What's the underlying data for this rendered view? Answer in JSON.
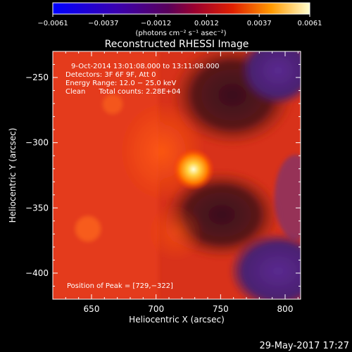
{
  "chart_data": {
    "type": "heatmap",
    "title": "Reconstructed RHESSI Image",
    "xlabel": "Heliocentric X (arcsec)",
    "ylabel": "Heliocentric Y (arcsec)",
    "xlim": [
      620,
      812
    ],
    "ylim": [
      -420,
      -230
    ],
    "x_ticks": [
      650,
      700,
      750,
      800
    ],
    "y_ticks": [
      -250,
      -300,
      -350,
      -400
    ],
    "colorbar": {
      "range": [
        -0.0061,
        0.0061
      ],
      "ticks": [
        -0.0061,
        -0.0037,
        -0.0012,
        0.0012,
        0.0037,
        0.0061
      ],
      "tick_labels": [
        "−0.0061",
        "−0.0037",
        "−0.0012",
        "0.0012",
        "0.0037",
        "0.0061"
      ],
      "units": "(photons cm⁻² s⁻¹ asec⁻²)"
    },
    "peak": {
      "x": 729,
      "y": -322
    },
    "annotations": {
      "time": "9‐Oct‐2014 13:01:08.000 to 13:11:08.000",
      "detectors": "Detectors: 3F 6F 9F, Att 0",
      "energy": "Energy Range: 12.0 − 25.0 keV",
      "clean": "Clean      Total counts: 2.28E+04",
      "peak_label": "Position of Peak = [729,−322]"
    },
    "footer_date": "29‐May‐2017 17:27"
  },
  "palette": {
    "background": "#000000",
    "axis": "#ffffff",
    "dark_region": "#3a1a45",
    "purple_region": "#5a2a8c"
  }
}
